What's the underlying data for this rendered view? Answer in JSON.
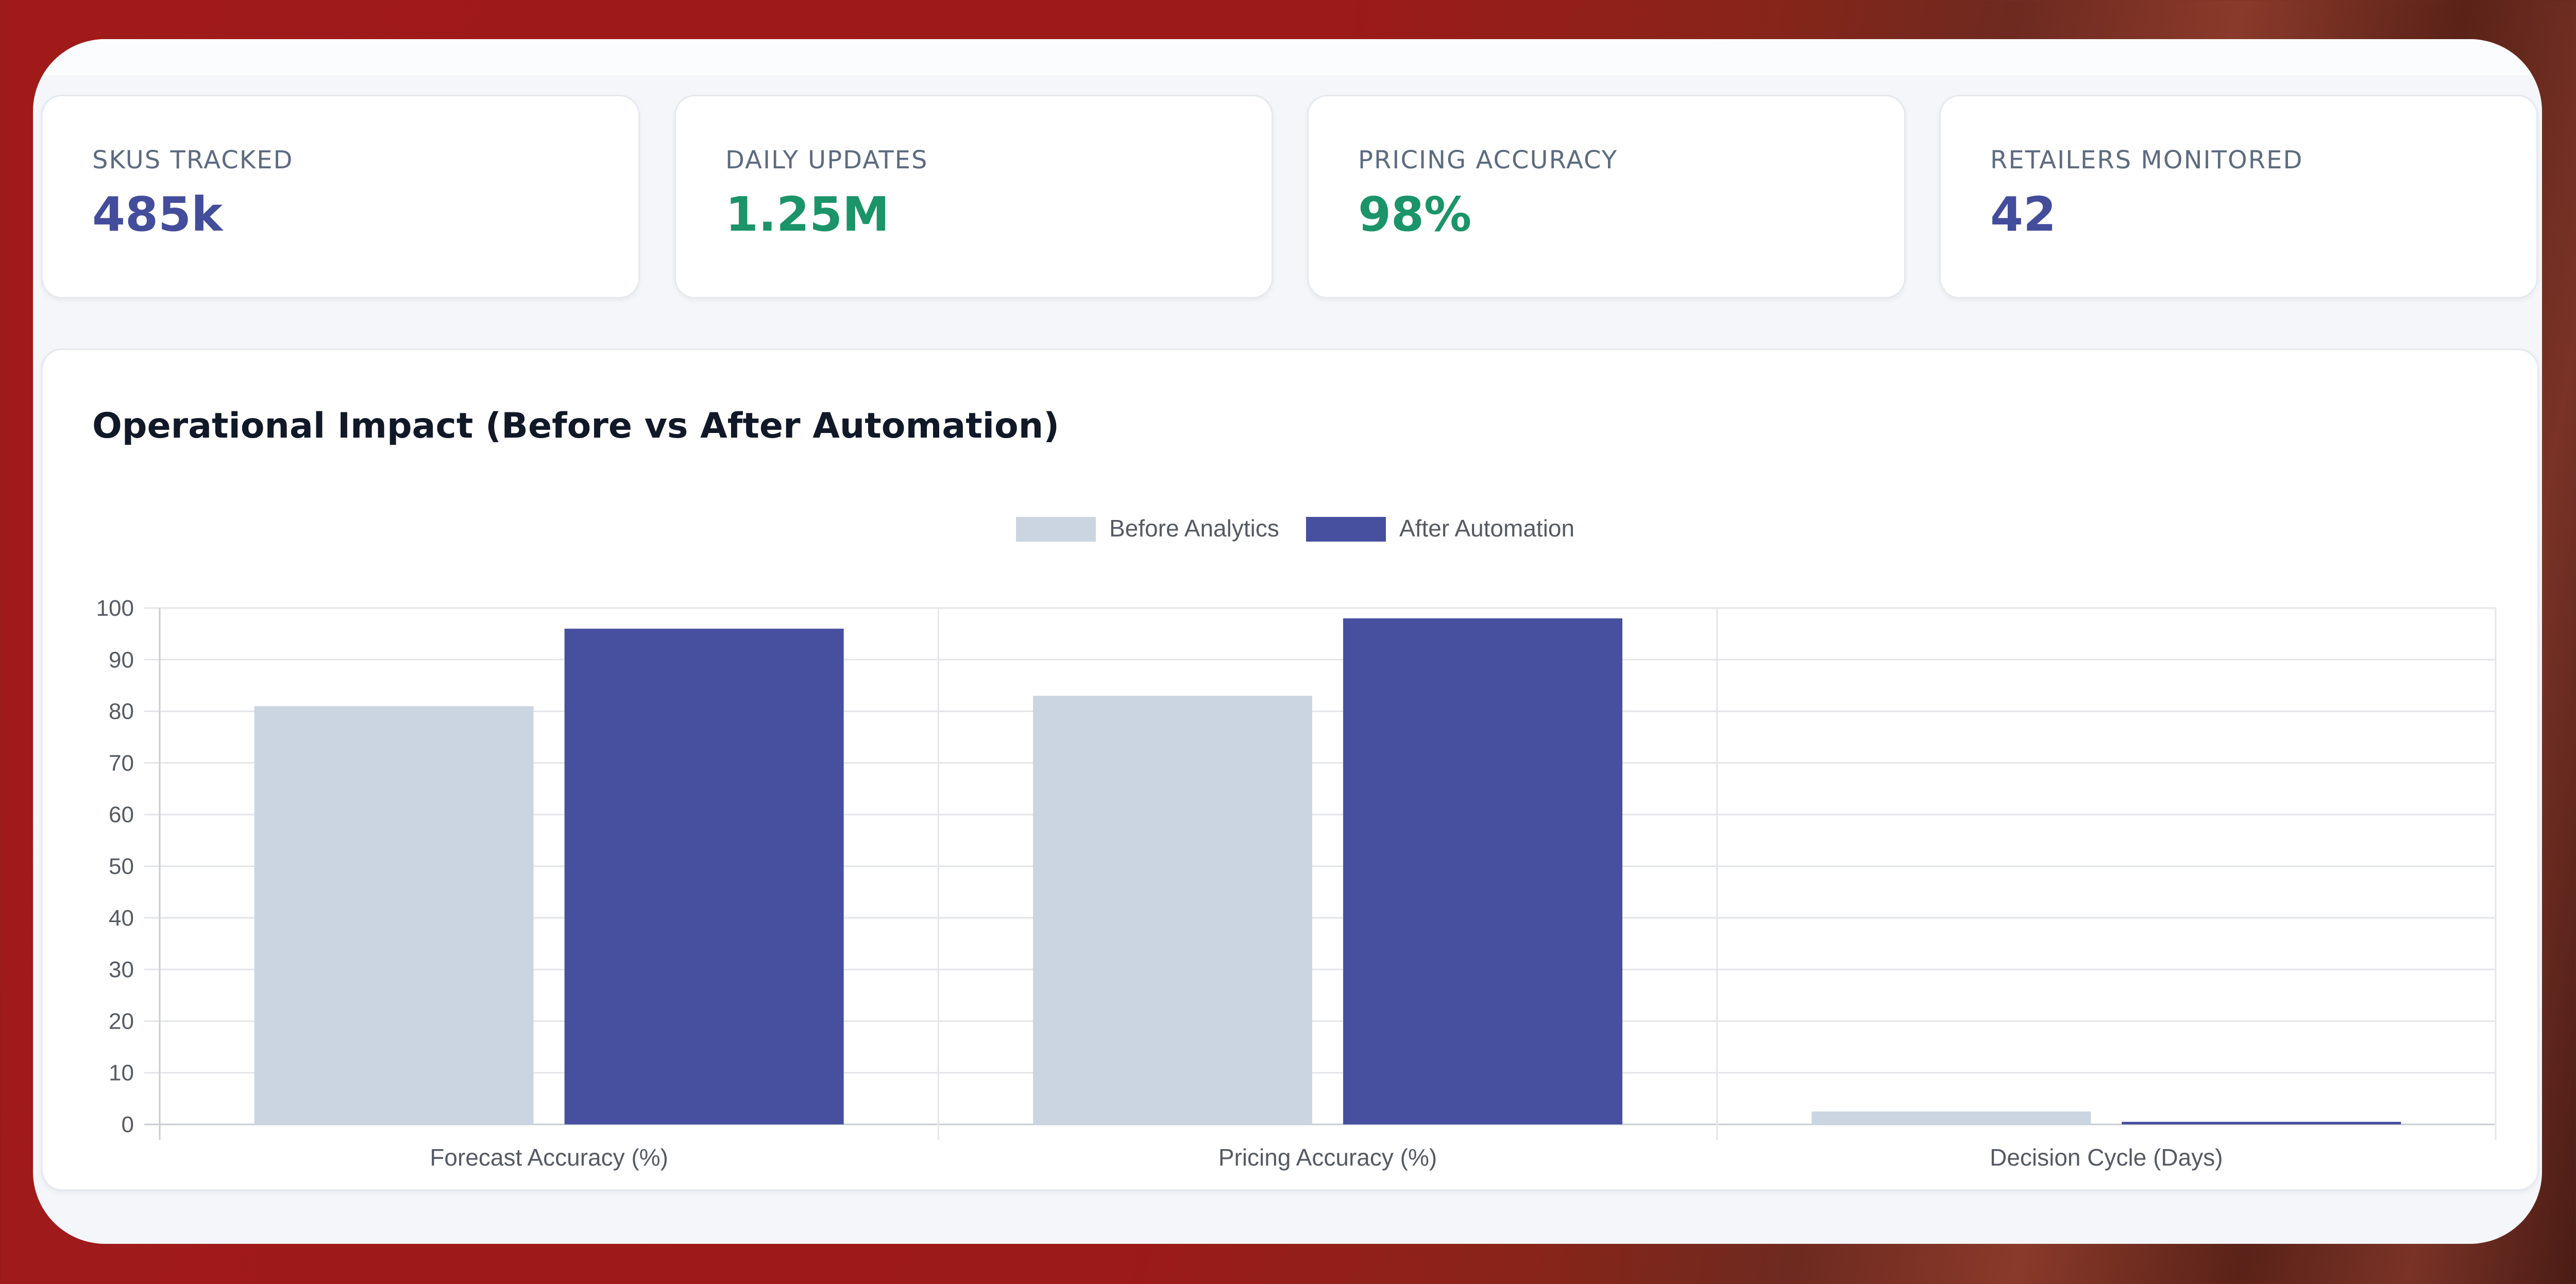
{
  "stats": [
    {
      "label": "SKUs Tracked",
      "value": "485k",
      "color": "#434d9b"
    },
    {
      "label": "Daily Updates",
      "value": "1.25M",
      "color": "#1a9468"
    },
    {
      "label": "Pricing Accuracy",
      "value": "98%",
      "color": "#1a9468"
    },
    {
      "label": "Retailers Monitored",
      "value": "42",
      "color": "#434d9b"
    }
  ],
  "panel": {
    "title": "Operational Impact (Before vs After Automation)"
  },
  "chart_data": {
    "type": "bar",
    "categories": [
      "Forecast Accuracy (%)",
      "Pricing Accuracy (%)",
      "Decision Cycle (Days)"
    ],
    "series": [
      {
        "name": "Before Analytics",
        "values": [
          81,
          83,
          2.5
        ],
        "color": "#cbd5e1"
      },
      {
        "name": "After Automation",
        "values": [
          96,
          98,
          0.5
        ],
        "color": "#46509f"
      }
    ],
    "ylim": [
      0,
      100
    ],
    "yticks": [
      0,
      10,
      20,
      30,
      40,
      50,
      60,
      70,
      80,
      90,
      100
    ],
    "grid": true,
    "legend": "top-center",
    "title": "",
    "xlabel": "",
    "ylabel": ""
  }
}
